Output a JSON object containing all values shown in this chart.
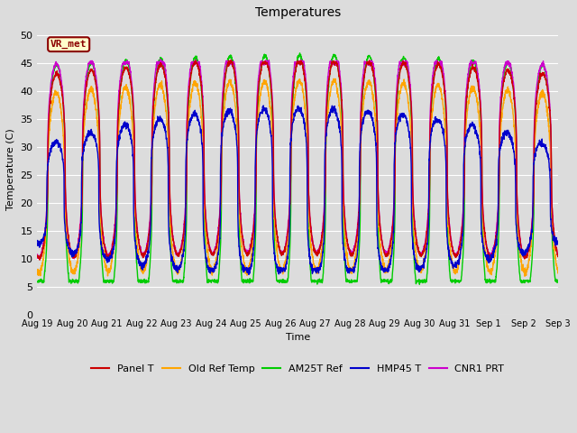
{
  "title": "Temperatures",
  "xlabel": "Time",
  "ylabel": "Temperature (C)",
  "ylim": [
    0,
    52
  ],
  "yticks": [
    0,
    5,
    10,
    15,
    20,
    25,
    30,
    35,
    40,
    45,
    50
  ],
  "bg_color": "#dcdcdc",
  "annotation_text": "VR_met",
  "annotation_color": "#8b0000",
  "annotation_bg": "#ffffcc",
  "legend": [
    "Panel T",
    "Old Ref Temp",
    "AM25T Ref",
    "HMP45 T",
    "CNR1 PRT"
  ],
  "line_colors": [
    "#cc0000",
    "#ffa500",
    "#00cc00",
    "#0000cc",
    "#cc00cc"
  ],
  "date_labels": [
    "Aug 19",
    "Aug 20",
    "Aug 21",
    "Aug 22",
    "Aug 23",
    "Aug 24",
    "Aug 25",
    "Aug 26",
    "Aug 27",
    "Aug 28",
    "Aug 29",
    "Aug 30",
    "Aug 31",
    "Sep 1",
    "Sep 2",
    "Sep 3"
  ],
  "figsize": [
    6.4,
    4.8
  ],
  "dpi": 100
}
